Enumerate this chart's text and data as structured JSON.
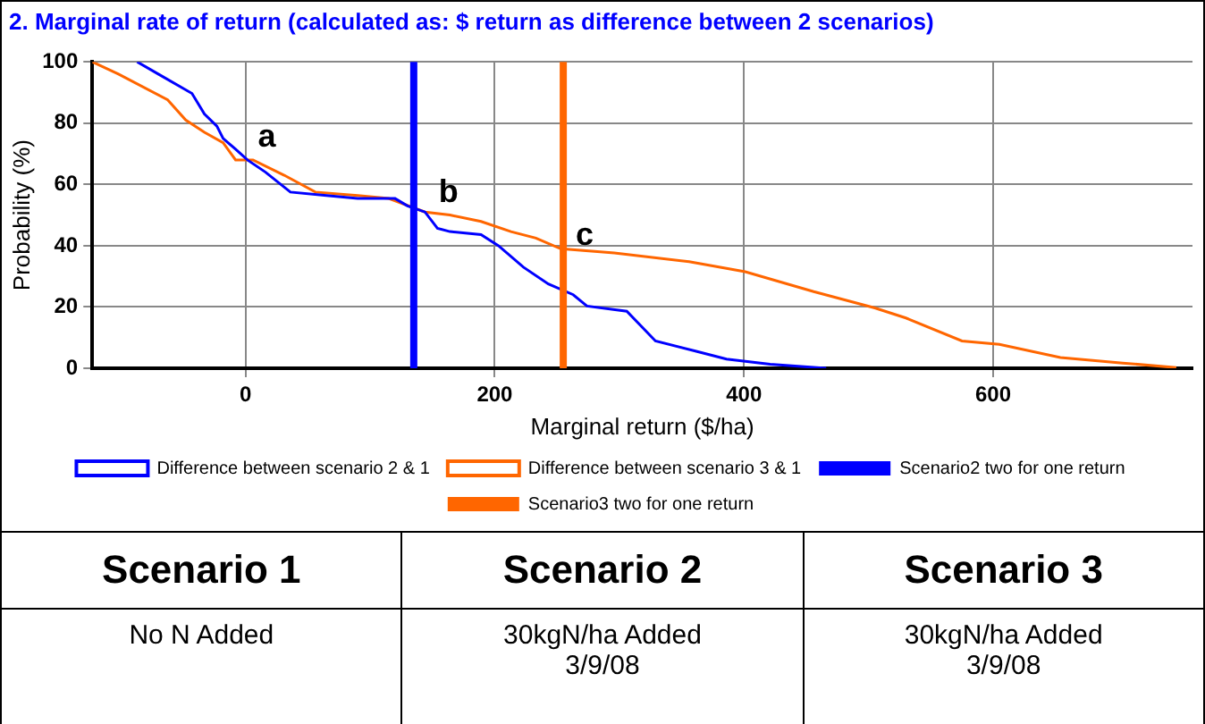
{
  "chart_data": {
    "type": "line",
    "title": "2. Marginal rate of return (calculated as: $ return as difference between 2 scenarios)",
    "xlabel": "Marginal return ($/ha)",
    "ylabel": "Probability (%)",
    "xlim": [
      -123,
      760
    ],
    "xticks": [
      0,
      200,
      400,
      600
    ],
    "ylim": [
      0,
      100
    ],
    "yticks": [
      0,
      20,
      40,
      60,
      80,
      100
    ],
    "grid": true,
    "legend": "bottom",
    "marker": "none",
    "line_style": "solid",
    "series": [
      {
        "name": "Difference between scenario 2 & 1",
        "color": "#0000ff",
        "x": [
          -87,
          -70,
          -43,
          -33,
          -23,
          -18,
          -8,
          1.5,
          16,
          36,
          65,
          90,
          120,
          130,
          144,
          154,
          164,
          189,
          203,
          223,
          243,
          263,
          274,
          306,
          329,
          361,
          386,
          421,
          466
        ],
        "values": [
          100,
          96,
          89.7,
          83,
          79,
          75,
          71.5,
          68,
          64,
          57.5,
          56.4,
          55.4,
          55.4,
          53,
          51,
          45.7,
          44.6,
          43.6,
          40,
          33,
          27.5,
          24,
          20.3,
          18.6,
          8.9,
          5.6,
          3,
          1.3,
          0
        ]
      },
      {
        "name": "Difference between scenario 3 & 1",
        "color": "#ff6600",
        "x": [
          -123,
          -102,
          -62.5,
          -48,
          -33,
          -18,
          -8,
          6,
          31,
          56,
          90,
          115,
          144,
          164,
          189,
          213,
          233,
          253,
          296,
          356,
          401,
          456,
          505,
          530,
          575,
          605,
          654,
          704,
          747
        ],
        "values": [
          100,
          96,
          87.6,
          81,
          77,
          73.6,
          68,
          68,
          63,
          57.5,
          56.4,
          55.4,
          51,
          50,
          47.9,
          44.6,
          42.5,
          39,
          37.6,
          34.8,
          31.5,
          25,
          19.7,
          16.4,
          8.9,
          7.8,
          3.5,
          1.7,
          0.2
        ]
      }
    ],
    "ref_lines": [
      {
        "axis": "x",
        "value": 135,
        "label": "Scenario2 two for one return",
        "color": "#0000ff"
      },
      {
        "axis": "x",
        "value": 255,
        "label": "Scenario3 two for one return",
        "color": "#ff6600"
      }
    ],
    "annotations": [
      {
        "text": "a",
        "x": 10,
        "y": 70
      },
      {
        "text": "b",
        "x": 155,
        "y": 52
      },
      {
        "text": "c",
        "x": 265,
        "y": 38
      },
      "Scenario 1",
      "Scenario 2",
      "Scenario 3",
      "No N Added",
      "30kgN/ha Added 3/9/08",
      "30kgN/ha Added 3/9/08"
    ]
  }
}
